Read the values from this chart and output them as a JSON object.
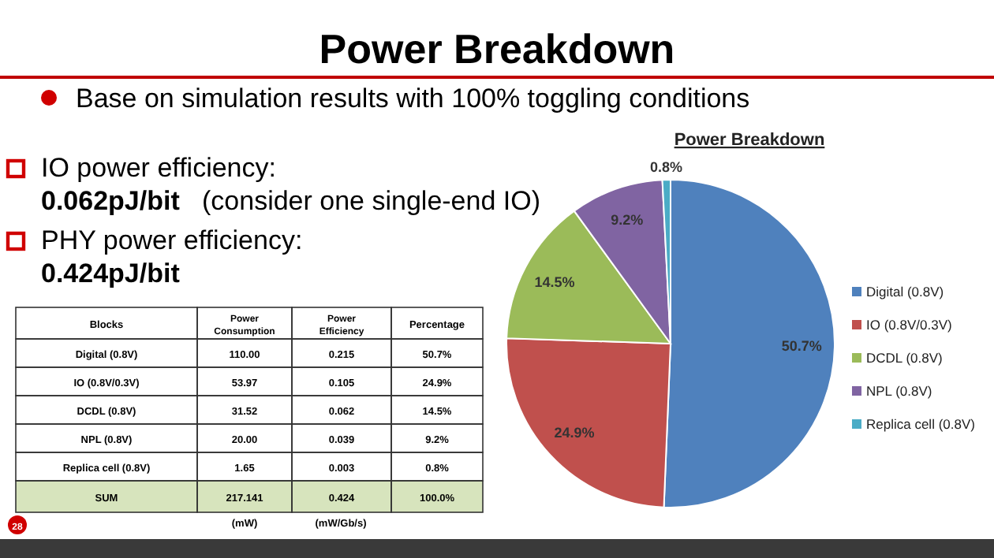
{
  "chart_data": {
    "type": "pie",
    "title": "Power Breakdown",
    "categories": [
      "Digital (0.8V)",
      "IO (0.8V/0.3V)",
      "DCDL (0.8V)",
      "NPL (0.8V)",
      "Replica cell (0.8V)"
    ],
    "values": [
      50.7,
      24.9,
      14.5,
      9.2,
      0.8
    ],
    "colors": [
      "#4f81bd",
      "#c0504d",
      "#9bbb59",
      "#8064a2",
      "#4bacc6"
    ],
    "value_labels": [
      "50.7%",
      "24.9%",
      "14.5%",
      "9.2%",
      "0.8%"
    ],
    "legend": "right",
    "annotations": [
      "Power Breakdown",
      "Base on simulation results with 100% toggling conditions",
      "IO power efficiency:",
      "0.062pJ/bit",
      "(consider one single-end IO)",
      "PHY power efficiency:",
      "0.424pJ/bit",
      "Blocks",
      "Power Consumption",
      "Power Efficiency",
      "Percentage",
      "Digital (0.8V)",
      "110.00",
      "0.215",
      "50.7%",
      "IO (0.8V/0.3V)",
      "53.97",
      "0.105",
      "24.9%",
      "DCDL (0.8V)",
      "31.52",
      "0.062",
      "14.5%",
      "NPL (0.8V)",
      "20.00",
      "0.039",
      "9.2%",
      "Replica cell (0.8V)",
      "1.65",
      "0.003",
      "0.8%",
      "SUM",
      "217.141",
      "0.424",
      "100.0%",
      "(mW)",
      "(mW/Gb/s)",
      "28"
    ]
  }
}
